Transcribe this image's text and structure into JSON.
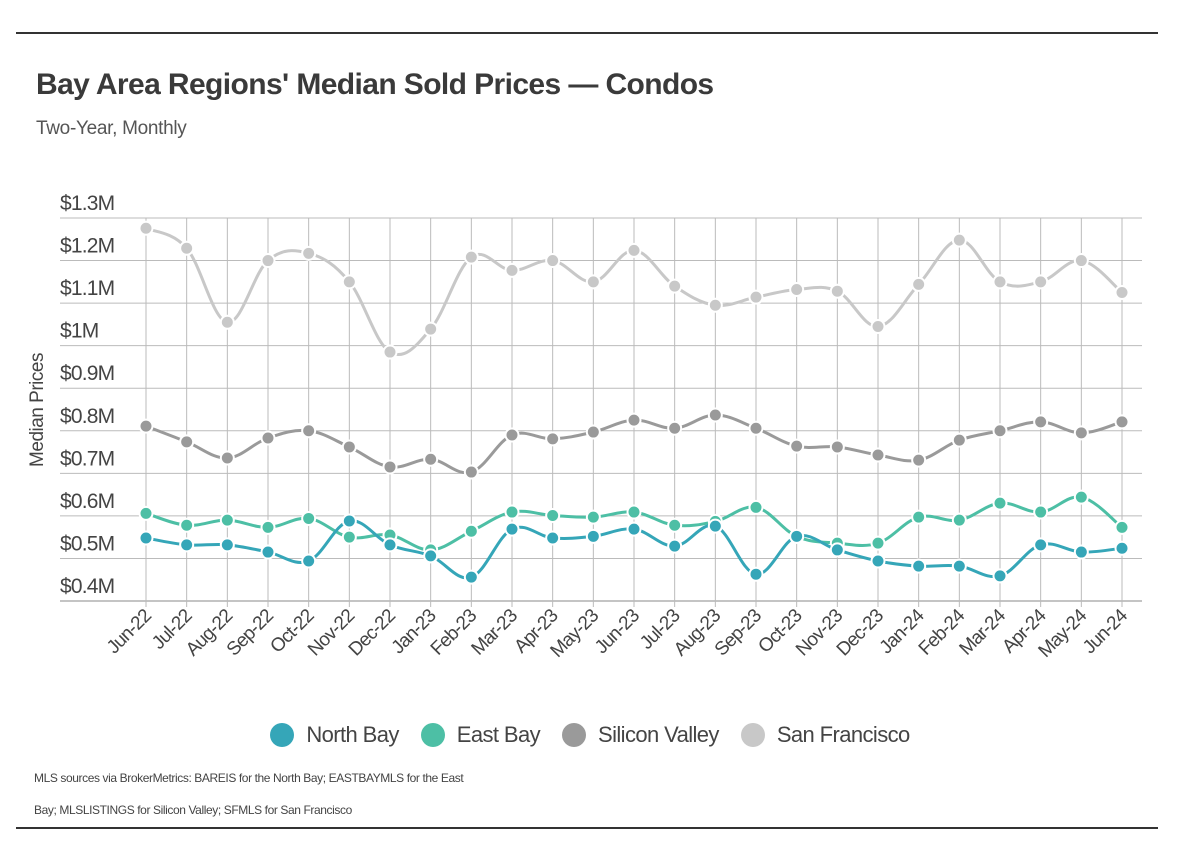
{
  "header": {
    "title": "Bay Area Regions' Median Sold Prices — Condos",
    "subtitle": "Two-Year, Monthly"
  },
  "footnote": {
    "line1": "MLS sources via BrokerMetrics: BAREIS for the North Bay; EASTBAYMLS for the East",
    "line2": "Bay; MLSLISTINGS for Silicon Valley; SFMLS for San Francisco"
  },
  "chart_data": {
    "type": "line",
    "title": "Bay Area Regions' Median Sold Prices — Condos",
    "subtitle": "Two-Year, Monthly",
    "xlabel": "",
    "ylabel": "Median Prices",
    "ylim": [
      0.4,
      1.3
    ],
    "yticks": [
      0.4,
      0.5,
      0.6,
      0.7,
      0.8,
      0.9,
      1.0,
      1.1,
      1.2,
      1.3
    ],
    "ytick_labels": [
      "$0.4M",
      "$0.5M",
      "$0.6M",
      "$0.7M",
      "$0.8M",
      "$0.9M",
      "$1M",
      "$1.1M",
      "$1.2M",
      "$1.3M"
    ],
    "grid": true,
    "legend_position": "bottom-center",
    "categories": [
      "Jun-22",
      "Jul-22",
      "Aug-22",
      "Sep-22",
      "Oct-22",
      "Nov-22",
      "Dec-22",
      "Jan-23",
      "Feb-23",
      "Mar-23",
      "Apr-23",
      "May-23",
      "Jun-23",
      "Jul-23",
      "Aug-23",
      "Sep-23",
      "Oct-23",
      "Nov-23",
      "Dec-23",
      "Jan-24",
      "Feb-24",
      "Mar-24",
      "Apr-24",
      "May-24",
      "Jun-24"
    ],
    "series": [
      {
        "name": "North Bay",
        "color": "#35a6b8",
        "values": [
          0.548,
          0.532,
          0.532,
          0.515,
          0.494,
          0.588,
          0.532,
          0.506,
          0.456,
          0.569,
          0.548,
          0.552,
          0.569,
          0.529,
          0.576,
          0.463,
          0.552,
          0.52,
          0.494,
          0.482,
          0.482,
          0.459,
          0.532,
          0.515,
          0.524
        ]
      },
      {
        "name": "East Bay",
        "color": "#4dbfa5",
        "values": [
          0.606,
          0.578,
          0.59,
          0.573,
          0.594,
          0.55,
          0.555,
          0.52,
          0.564,
          0.609,
          0.601,
          0.597,
          0.609,
          0.578,
          0.587,
          0.62,
          0.552,
          0.536,
          0.536,
          0.597,
          0.59,
          0.63,
          0.609,
          0.644,
          0.573
        ]
      },
      {
        "name": "Silicon Valley",
        "color": "#9a9a9a",
        "values": [
          0.811,
          0.774,
          0.736,
          0.783,
          0.8,
          0.762,
          0.715,
          0.733,
          0.703,
          0.79,
          0.781,
          0.797,
          0.825,
          0.806,
          0.837,
          0.806,
          0.764,
          0.762,
          0.743,
          0.731,
          0.778,
          0.8,
          0.821,
          0.795,
          0.821
        ]
      },
      {
        "name": "San Francisco",
        "color": "#c8c8c8",
        "values": [
          1.276,
          1.229,
          1.055,
          1.2,
          1.217,
          1.15,
          0.985,
          1.039,
          1.208,
          1.177,
          1.2,
          1.15,
          1.224,
          1.14,
          1.095,
          1.114,
          1.132,
          1.128,
          1.045,
          1.144,
          1.248,
          1.15,
          1.15,
          1.2,
          1.125
        ]
      }
    ]
  }
}
